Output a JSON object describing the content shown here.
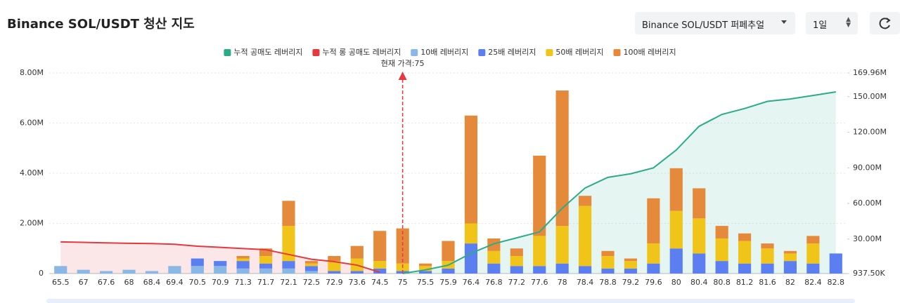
{
  "header": {
    "title": "Binance SOL/USDT 청산 지도",
    "market_select": "Binance SOL/USDT 퍼페추얼",
    "interval_select": "1일"
  },
  "chart_data": {
    "type": "bar",
    "stacked": true,
    "annotation": "현재 가격:75",
    "current_price": "75",
    "categories": [
      "65.5",
      "67",
      "67.6",
      "68",
      "68.4",
      "69.4",
      "70.5",
      "70.9",
      "71.3",
      "71.7",
      "72.1",
      "72.5",
      "72.9",
      "73.6",
      "74.5",
      "75",
      "75.5",
      "75.9",
      "76.4",
      "76.8",
      "77.2",
      "77.6",
      "78",
      "78.4",
      "78.8",
      "79.2",
      "79.6",
      "80",
      "80.4",
      "80.8",
      "81.2",
      "81.6",
      "82",
      "82.4",
      "82.8"
    ],
    "series": [
      {
        "name": "누적 공매도 레버리지",
        "type": "line",
        "axis": "y2",
        "color": "#2bab88",
        "values": [
          null,
          null,
          null,
          null,
          null,
          null,
          null,
          null,
          null,
          null,
          null,
          null,
          null,
          null,
          null,
          1000000,
          4000000,
          8000000,
          18000000,
          26000000,
          31000000,
          36000000,
          56000000,
          73000000,
          82000000,
          85000000,
          90000000,
          105000000,
          125000000,
          135000000,
          140000000,
          146000000,
          148000000,
          151000000,
          154000000
        ]
      },
      {
        "name": "누적 롱 공매도 레버리지",
        "type": "line",
        "axis": "y2",
        "color": "#e5383f",
        "values": [
          27600000,
          27200000,
          26800000,
          26400000,
          26200000,
          25600000,
          24000000,
          23000000,
          22000000,
          21000000,
          17000000,
          13000000,
          11000000,
          8000000,
          2000000,
          null,
          null,
          null,
          null,
          null,
          null,
          null,
          null,
          null,
          null,
          null,
          null,
          null,
          null,
          null,
          null,
          null,
          null,
          null,
          null
        ]
      },
      {
        "name": "10배 레버리지",
        "color": "#8ab8e6",
        "values": [
          300000,
          150000,
          100000,
          150000,
          100000,
          300000,
          300000,
          300000,
          200000,
          200000,
          200000,
          100000,
          0,
          0,
          0,
          0,
          0,
          0,
          0,
          0,
          0,
          0,
          0,
          0,
          0,
          0,
          0,
          0,
          0,
          0,
          0,
          0,
          0,
          0,
          0
        ]
      },
      {
        "name": "25배 레버리지",
        "color": "#5b7ff0",
        "values": [
          0,
          0,
          0,
          0,
          0,
          0,
          300000,
          200000,
          300000,
          200000,
          300000,
          200000,
          100000,
          100000,
          200000,
          100000,
          100000,
          200000,
          1200000,
          400000,
          300000,
          300000,
          400000,
          300000,
          200000,
          200000,
          400000,
          1000000,
          800000,
          500000,
          400000,
          400000,
          500000,
          400000,
          800000
        ]
      },
      {
        "name": "50배 레버리지",
        "color": "#f0c419",
        "values": [
          0,
          0,
          0,
          0,
          0,
          0,
          0,
          0,
          100000,
          300000,
          1400000,
          100000,
          400000,
          500000,
          300000,
          300000,
          200000,
          300000,
          800000,
          500000,
          400000,
          1200000,
          1500000,
          2400000,
          500000,
          300000,
          800000,
          1500000,
          1400000,
          900000,
          900000,
          600000,
          300000,
          800000,
          0
        ]
      },
      {
        "name": "100배 레버리지",
        "color": "#e58a3a",
        "values": [
          0,
          0,
          0,
          0,
          0,
          0,
          0,
          0,
          100000,
          300000,
          1000000,
          100000,
          200000,
          500000,
          1200000,
          1400000,
          100000,
          800000,
          4300000,
          500000,
          300000,
          3200000,
          5400000,
          400000,
          200000,
          100000,
          1800000,
          1700000,
          1200000,
          500000,
          300000,
          200000,
          100000,
          300000,
          0
        ]
      }
    ],
    "ylim": [
      0,
      8000000
    ],
    "yticks": [
      0,
      {
        "value": 2000000,
        "label": "2.00M"
      },
      {
        "value": 4000000,
        "label": "4.00M"
      },
      {
        "value": 6000000,
        "label": "6.00M"
      },
      {
        "value": 8000000,
        "label": "8.00M"
      }
    ],
    "y2lim": [
      937500,
      169960000
    ],
    "y2ticks": [
      {
        "value": 937500,
        "label": "937.50K"
      },
      {
        "value": 30000000,
        "label": "30.00M"
      },
      {
        "value": 60000000,
        "label": "60.00M"
      },
      {
        "value": 90000000,
        "label": "90.00M"
      },
      {
        "value": 120000000,
        "label": "120.00M"
      },
      {
        "value": 150000000,
        "label": "150.00M"
      },
      {
        "value": 169960000,
        "label": "169.96M"
      }
    ],
    "grid": true
  }
}
